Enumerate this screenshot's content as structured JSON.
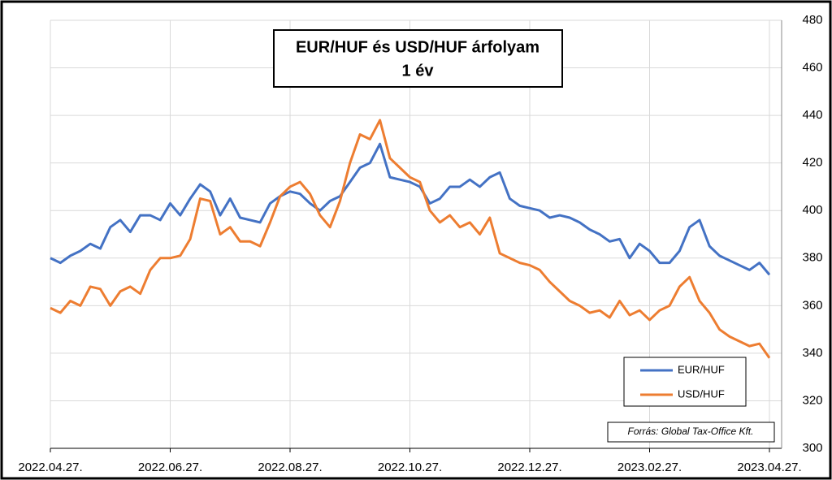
{
  "chart_data": {
    "type": "line",
    "title": "EUR/HUF és USD/HUF árfolyam",
    "subtitle": "1 év",
    "annotation": "Forrás: Global Tax-Office Kft.",
    "categories": [
      "2022.04.27.",
      null,
      null,
      null,
      null,
      null,
      null,
      null,
      null,
      null,
      null,
      null,
      "2022.06.27.",
      null,
      null,
      null,
      null,
      null,
      null,
      null,
      null,
      null,
      null,
      null,
      "2022.08.27.",
      null,
      null,
      null,
      null,
      null,
      null,
      null,
      null,
      null,
      null,
      null,
      "2022.10.27.",
      null,
      null,
      null,
      null,
      null,
      null,
      null,
      null,
      null,
      null,
      null,
      "2022.12.27.",
      null,
      null,
      null,
      null,
      null,
      null,
      null,
      null,
      null,
      null,
      null,
      "2023.02.27.",
      null,
      null,
      null,
      null,
      null,
      null,
      null,
      null,
      null,
      null,
      null,
      "2023.04.27."
    ],
    "series": [
      {
        "name": "EUR/HUF",
        "color": "#4472c4",
        "values": [
          380,
          378,
          381,
          383,
          386,
          384,
          393,
          396,
          391,
          398,
          398,
          396,
          403,
          398,
          405,
          411,
          408,
          398,
          405,
          397,
          396,
          395,
          403,
          406,
          408,
          407,
          403,
          400,
          404,
          406,
          412,
          418,
          420,
          428,
          414,
          413,
          412,
          410,
          403,
          405,
          410,
          410,
          413,
          410,
          414,
          416,
          405,
          402,
          401,
          400,
          397,
          398,
          397,
          395,
          392,
          390,
          387,
          388,
          380,
          386,
          383,
          378,
          378,
          383,
          393,
          396,
          385,
          381,
          379,
          377,
          375,
          378,
          373
        ]
      },
      {
        "name": "USD/HUF",
        "color": "#ed7d31",
        "values": [
          359,
          357,
          362,
          360,
          368,
          367,
          360,
          366,
          368,
          365,
          375,
          380,
          380,
          381,
          388,
          405,
          404,
          390,
          393,
          387,
          387,
          385,
          395,
          406,
          410,
          412,
          407,
          398,
          393,
          404,
          420,
          432,
          430,
          438,
          422,
          418,
          414,
          412,
          400,
          395,
          398,
          393,
          395,
          390,
          397,
          382,
          380,
          378,
          377,
          375,
          370,
          366,
          362,
          360,
          357,
          358,
          355,
          362,
          356,
          358,
          354,
          358,
          360,
          368,
          372,
          362,
          357,
          350,
          347,
          345,
          343,
          344,
          338
        ]
      }
    ],
    "ylim": [
      300,
      480
    ],
    "yticks": [
      300,
      320,
      340,
      360,
      380,
      400,
      420,
      440,
      460,
      480
    ],
    "grid": true,
    "legend": "lower right"
  }
}
